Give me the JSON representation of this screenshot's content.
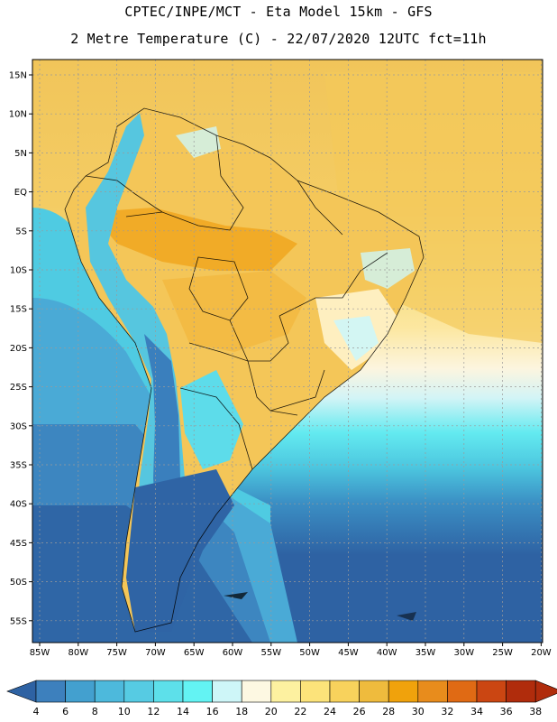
{
  "title": {
    "line1": "CPTEC/INPE/MCT -  Eta Model 15km - GFS",
    "line2": "2 Metre Temperature (C) - 22/07/2020 12UTC fct=11h"
  },
  "map": {
    "lat_labels": [
      "15N",
      "10N",
      "5N",
      "EQ",
      "5S",
      "10S",
      "15S",
      "20S",
      "25S",
      "30S",
      "35S",
      "40S",
      "45S",
      "50S",
      "55S"
    ],
    "lon_labels": [
      "85W",
      "80W",
      "75W",
      "70W",
      "65W",
      "60W",
      "55W",
      "50W",
      "45W",
      "40W",
      "35W",
      "30W",
      "25W",
      "20W"
    ]
  },
  "colorbar": {
    "labels": [
      "4",
      "6",
      "8",
      "10",
      "12",
      "14",
      "16",
      "18",
      "20",
      "22",
      "24",
      "26",
      "28",
      "30",
      "32",
      "34",
      "36",
      "38"
    ],
    "colors": [
      "#2e62a3",
      "#3d80bd",
      "#43a0cf",
      "#4db9dc",
      "#56cbe3",
      "#5de0ea",
      "#63f3f3",
      "#cef6f8",
      "#fdf8e2",
      "#fdf1a0",
      "#fce37a",
      "#f8d25c",
      "#efbb3d",
      "#f0a20c",
      "#e88c1c",
      "#e06a14",
      "#cb4612",
      "#b02c0c"
    ]
  }
}
